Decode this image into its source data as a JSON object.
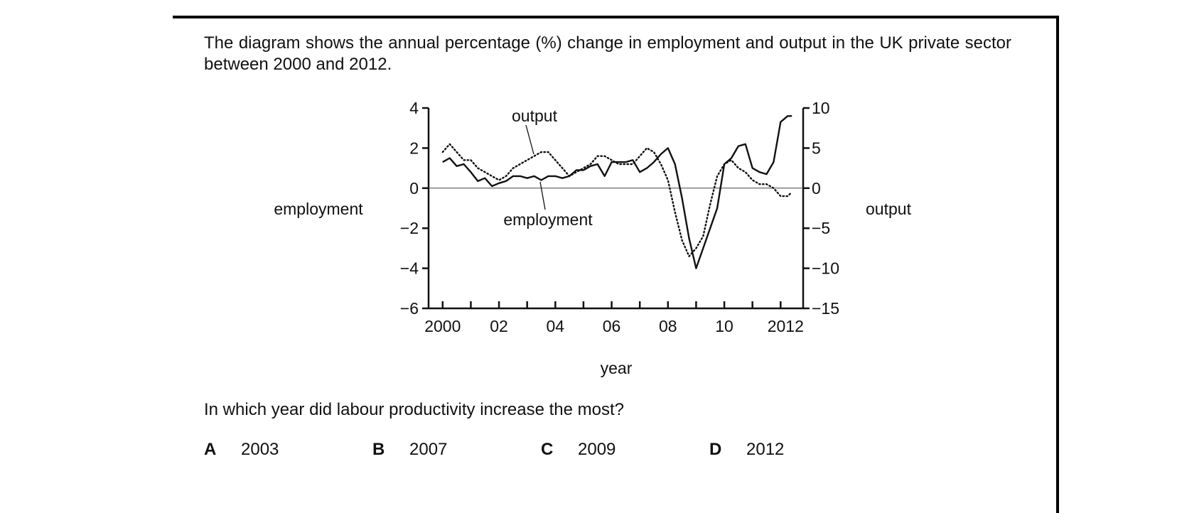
{
  "question": {
    "intro": "The diagram shows the annual percentage (%) change in employment and output in the UK private sector between 2000 and 2012.",
    "prompt": "In which year did labour productivity increase the most?",
    "options": [
      {
        "letter": "A",
        "text": "2003"
      },
      {
        "letter": "B",
        "text": "2007"
      },
      {
        "letter": "C",
        "text": "2009"
      },
      {
        "letter": "D",
        "text": "2012"
      }
    ]
  },
  "chart_data": {
    "type": "line",
    "xlabel": "year",
    "x_tick_labels": [
      "2000",
      "02",
      "04",
      "06",
      "08",
      "10",
      "2012"
    ],
    "x_tick_values": [
      2000,
      2002,
      2004,
      2006,
      2008,
      2010,
      2012
    ],
    "xlim": [
      1999.5,
      2012.8
    ],
    "left_axis": {
      "label": "employment",
      "ylim": [
        -6,
        4
      ],
      "ticks": [
        4,
        2,
        0,
        -2,
        -4,
        -6
      ],
      "tick_labels": [
        "4",
        "2",
        "0",
        "−2",
        "−4",
        "−6"
      ]
    },
    "right_axis": {
      "label": "output",
      "ylim": [
        -15,
        10
      ],
      "ticks": [
        10,
        5,
        0,
        -5,
        -10,
        -15
      ],
      "tick_labels": [
        "10",
        "5",
        "0",
        "−5",
        "−10",
        "−15"
      ]
    },
    "zero_line": true,
    "series": [
      {
        "name": "employment",
        "axis": "left",
        "style": "solid",
        "color": "#111111",
        "x": [
          2000.0,
          2000.25,
          2000.5,
          2000.75,
          2001.0,
          2001.25,
          2001.5,
          2001.75,
          2002.0,
          2002.25,
          2002.5,
          2002.75,
          2003.0,
          2003.25,
          2003.5,
          2003.75,
          2004.0,
          2004.25,
          2004.5,
          2004.75,
          2005.0,
          2005.25,
          2005.5,
          2005.75,
          2006.0,
          2006.25,
          2006.5,
          2006.75,
          2007.0,
          2007.25,
          2007.5,
          2007.75,
          2008.0,
          2008.25,
          2008.5,
          2008.75,
          2009.0,
          2009.25,
          2009.5,
          2009.75,
          2010.0,
          2010.25,
          2010.5,
          2010.75,
          2011.0,
          2011.25,
          2011.5,
          2011.75,
          2012.0,
          2012.25,
          2012.4
        ],
        "y": [
          1.3,
          1.5,
          1.1,
          1.2,
          0.8,
          0.35,
          0.5,
          0.1,
          0.25,
          0.35,
          0.6,
          0.6,
          0.5,
          0.6,
          0.4,
          0.6,
          0.6,
          0.5,
          0.6,
          0.9,
          0.9,
          1.1,
          1.2,
          0.6,
          1.3,
          1.3,
          1.3,
          1.4,
          0.8,
          1.0,
          1.3,
          1.7,
          2.0,
          1.2,
          -0.5,
          -2.5,
          -4.0,
          -3.0,
          -2.0,
          -1.0,
          1.2,
          1.5,
          2.1,
          2.2,
          1.0,
          0.8,
          0.7,
          1.3,
          3.3,
          3.6,
          3.6
        ]
      },
      {
        "name": "output",
        "axis": "right",
        "style": "dotted",
        "color": "#111111",
        "x": [
          2000.0,
          2000.25,
          2000.5,
          2000.75,
          2001.0,
          2001.25,
          2001.5,
          2001.75,
          2002.0,
          2002.25,
          2002.5,
          2002.75,
          2003.0,
          2003.25,
          2003.5,
          2003.75,
          2004.0,
          2004.25,
          2004.5,
          2004.75,
          2005.0,
          2005.25,
          2005.5,
          2005.75,
          2006.0,
          2006.25,
          2006.5,
          2006.75,
          2007.0,
          2007.25,
          2007.5,
          2007.75,
          2008.0,
          2008.25,
          2008.5,
          2008.75,
          2009.0,
          2009.25,
          2009.5,
          2009.75,
          2010.0,
          2010.25,
          2010.5,
          2010.75,
          2011.0,
          2011.25,
          2011.5,
          2011.75,
          2012.0,
          2012.25,
          2012.4
        ],
        "y": [
          4.5,
          5.5,
          4.5,
          3.5,
          3.5,
          2.5,
          2.0,
          1.5,
          1.0,
          1.5,
          2.5,
          3.0,
          3.5,
          4.0,
          4.5,
          4.5,
          3.5,
          2.5,
          1.5,
          2.0,
          2.5,
          3.0,
          4.0,
          4.0,
          3.5,
          3.0,
          3.0,
          3.0,
          4.0,
          5.0,
          4.5,
          3.0,
          1.0,
          -3.0,
          -6.5,
          -8.5,
          -7.5,
          -6.0,
          -2.0,
          1.5,
          3.0,
          3.5,
          2.5,
          2.0,
          1.0,
          0.5,
          0.5,
          0.0,
          -1.0,
          -1.0,
          -0.5
        ]
      }
    ],
    "annotations": [
      {
        "text": "output",
        "series": "output"
      },
      {
        "text": "employment",
        "series": "employment"
      }
    ]
  }
}
